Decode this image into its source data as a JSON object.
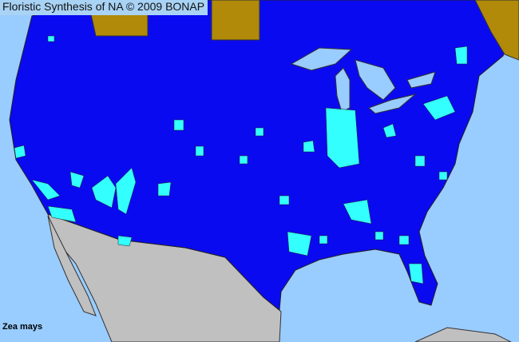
{
  "title": "Floristic Synthesis of NA © 2009 BONAP",
  "species": "Zea mays",
  "colors": {
    "ocean": "#99ccff",
    "present_state": "#0a0af0",
    "present_county": "#33ffff",
    "not_present_canada": "#b08a08",
    "mexico": "#c0c0c0",
    "borders": "#333333"
  }
}
